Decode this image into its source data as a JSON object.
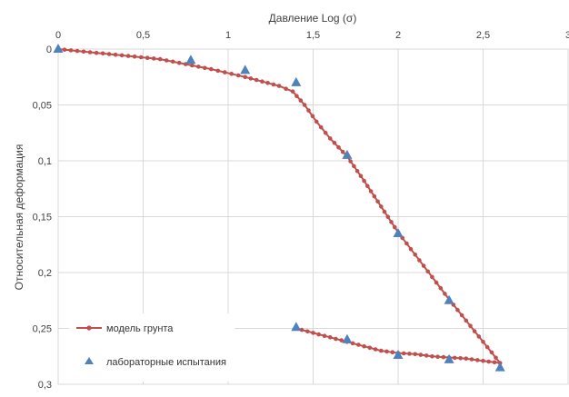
{
  "chart_data": {
    "type": "scatter",
    "title": "",
    "xlabel": "Давление Log (σ)",
    "ylabel": "Относительная деформация",
    "xlim": [
      0,
      3
    ],
    "ylim": [
      0,
      0.3
    ],
    "y_inverted": true,
    "x_axis_position": "top",
    "grid": true,
    "x_ticks": [
      0,
      0.5,
      1,
      1.5,
      2,
      2.5,
      3
    ],
    "x_tick_labels": [
      "0",
      "0,5",
      "1",
      "1,5",
      "2",
      "2,5",
      "3"
    ],
    "y_ticks": [
      0,
      0.05,
      0.1,
      0.15,
      0.2,
      0.25,
      0.3
    ],
    "y_tick_labels": [
      "0",
      "0,05",
      "0,1",
      "0,15",
      "0,2",
      "0,25",
      "0,3"
    ],
    "legend_position": "bottom-left",
    "series": [
      {
        "name": "модель грунта",
        "type": "line",
        "marker": "circle",
        "color": "#c0504d",
        "x": [
          0,
          0.6,
          0.9,
          1.1,
          1.2,
          1.3,
          1.38,
          1.45,
          1.52,
          1.6,
          1.7,
          1.8,
          1.9,
          2.0,
          2.1,
          2.2,
          2.3,
          2.4,
          2.5,
          2.6,
          2.5,
          2.4,
          2.3,
          2.2,
          2.1,
          2.0,
          1.9,
          1.8,
          1.7,
          1.6,
          1.5,
          1.4
        ],
        "y": [
          0,
          0.009,
          0.018,
          0.025,
          0.029,
          0.033,
          0.038,
          0.05,
          0.065,
          0.08,
          0.096,
          0.118,
          0.141,
          0.164,
          0.184,
          0.204,
          0.224,
          0.243,
          0.262,
          0.281,
          0.279,
          0.277,
          0.276,
          0.275,
          0.273,
          0.272,
          0.27,
          0.266,
          0.262,
          0.258,
          0.254,
          0.25
        ]
      },
      {
        "name": "лабораторные испытания",
        "type": "scatter",
        "marker": "triangle",
        "color": "#4f81bd",
        "x": [
          0,
          0.78,
          1.1,
          1.4,
          1.7,
          2.0,
          2.3,
          2.6,
          2.3,
          2.0,
          1.7,
          1.4
        ],
        "y": [
          0,
          0.01,
          0.019,
          0.03,
          0.095,
          0.165,
          0.225,
          0.285,
          0.278,
          0.274,
          0.26,
          0.249
        ]
      }
    ]
  }
}
